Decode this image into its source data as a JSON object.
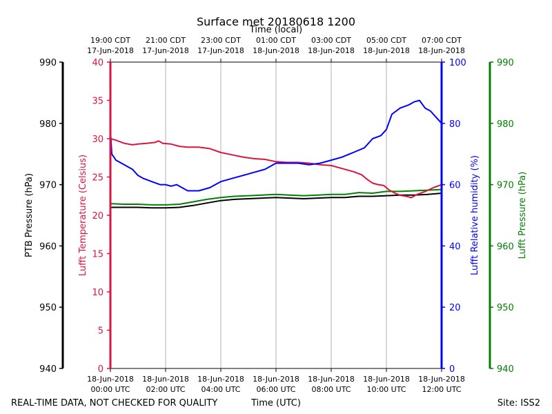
{
  "chart_data": {
    "type": "line",
    "title": "Surface met 20180618 1200",
    "top_axis_label": "Time (local)",
    "bottom_axis_label": "Time (UTC)",
    "footer_left": "REAL-TIME DATA, NOT CHECKED FOR QUALITY",
    "footer_right": "Site: ISS2",
    "x_range_hours": [
      0,
      12
    ],
    "x_ticks_utc": [
      {
        "h": 0,
        "line1": "18-Jun-2018",
        "line2": "00:00 UTC"
      },
      {
        "h": 2,
        "line1": "18-Jun-2018",
        "line2": "02:00 UTC"
      },
      {
        "h": 4,
        "line1": "18-Jun-2018",
        "line2": "04:00 UTC"
      },
      {
        "h": 6,
        "line1": "18-Jun-2018",
        "line2": "06:00 UTC"
      },
      {
        "h": 8,
        "line1": "18-Jun-2018",
        "line2": "08:00 UTC"
      },
      {
        "h": 10,
        "line1": "18-Jun-2018",
        "line2": "10:00 UTC"
      },
      {
        "h": 12,
        "line1": "18-Jun-2018",
        "line2": "12:00 UTC"
      }
    ],
    "x_ticks_local": [
      {
        "h": 0,
        "line1": "19:00 CDT",
        "line2": "17-Jun-2018"
      },
      {
        "h": 2,
        "line1": "21:00 CDT",
        "line2": "17-Jun-2018"
      },
      {
        "h": 4,
        "line1": "23:00 CDT",
        "line2": "17-Jun-2018"
      },
      {
        "h": 6,
        "line1": "01:00 CDT",
        "line2": "18-Jun-2018"
      },
      {
        "h": 8,
        "line1": "03:00 CDT",
        "line2": "18-Jun-2018"
      },
      {
        "h": 10,
        "line1": "05:00 CDT",
        "line2": "18-Jun-2018"
      },
      {
        "h": 12,
        "line1": "07:00 CDT",
        "line2": "18-Jun-2018"
      }
    ],
    "axes": {
      "ptb_pressure": {
        "label": "PTB Pressure (hPa)",
        "range": [
          940,
          990
        ],
        "ticks": [
          940,
          950,
          960,
          970,
          980,
          990
        ],
        "color": "#000000"
      },
      "temperature": {
        "label": "Lufft Temperature (Celsius)",
        "range": [
          0,
          40
        ],
        "ticks": [
          0,
          5,
          10,
          15,
          20,
          25,
          30,
          35,
          40
        ],
        "color": "#dc143c"
      },
      "humidity": {
        "label": "Lufft Relative humidity (%)",
        "range": [
          0,
          100
        ],
        "ticks": [
          0,
          20,
          40,
          60,
          80,
          100
        ],
        "color": "#0000ff"
      },
      "lufft_pressure": {
        "label": "Lufft Pressure (hPa)",
        "range": [
          940,
          990
        ],
        "ticks": [
          940,
          950,
          960,
          970,
          980,
          990
        ],
        "color": "#008000"
      }
    },
    "series": [
      {
        "name": "Lufft Temperature",
        "axis": "temperature",
        "color": "#dc143c",
        "points": [
          [
            0,
            30.0
          ],
          [
            0.2,
            29.8
          ],
          [
            0.5,
            29.4
          ],
          [
            0.8,
            29.2
          ],
          [
            1.0,
            29.3
          ],
          [
            1.3,
            29.4
          ],
          [
            1.6,
            29.5
          ],
          [
            1.75,
            29.7
          ],
          [
            1.9,
            29.4
          ],
          [
            2.2,
            29.3
          ],
          [
            2.5,
            29.0
          ],
          [
            2.8,
            28.9
          ],
          [
            3.2,
            28.9
          ],
          [
            3.6,
            28.7
          ],
          [
            4.0,
            28.2
          ],
          [
            4.4,
            27.9
          ],
          [
            4.8,
            27.6
          ],
          [
            5.2,
            27.4
          ],
          [
            5.6,
            27.3
          ],
          [
            6.0,
            27.0
          ],
          [
            6.4,
            26.9
          ],
          [
            6.8,
            26.9
          ],
          [
            7.2,
            26.8
          ],
          [
            7.6,
            26.6
          ],
          [
            8.0,
            26.5
          ],
          [
            8.4,
            26.1
          ],
          [
            8.8,
            25.7
          ],
          [
            9.1,
            25.3
          ],
          [
            9.3,
            24.7
          ],
          [
            9.5,
            24.2
          ],
          [
            9.7,
            24.0
          ],
          [
            9.9,
            23.9
          ],
          [
            10.1,
            23.3
          ],
          [
            10.3,
            22.9
          ],
          [
            10.5,
            22.6
          ],
          [
            10.7,
            22.5
          ],
          [
            10.9,
            22.3
          ],
          [
            11.1,
            22.7
          ],
          [
            11.4,
            23.1
          ],
          [
            11.7,
            23.6
          ],
          [
            12.0,
            24.0
          ]
        ]
      },
      {
        "name": "Lufft Relative humidity",
        "axis": "humidity",
        "color": "#0000ff",
        "points": [
          [
            0,
            78
          ],
          [
            0.05,
            70
          ],
          [
            0.2,
            68
          ],
          [
            0.4,
            67
          ],
          [
            0.6,
            66
          ],
          [
            0.8,
            65
          ],
          [
            1.0,
            63
          ],
          [
            1.2,
            62
          ],
          [
            1.5,
            61
          ],
          [
            1.8,
            60
          ],
          [
            2.0,
            60
          ],
          [
            2.2,
            59.5
          ],
          [
            2.4,
            60
          ],
          [
            2.6,
            59
          ],
          [
            2.8,
            58
          ],
          [
            3.2,
            58
          ],
          [
            3.6,
            59
          ],
          [
            4.0,
            61
          ],
          [
            4.4,
            62
          ],
          [
            4.8,
            63
          ],
          [
            5.2,
            64
          ],
          [
            5.6,
            65
          ],
          [
            6.0,
            67
          ],
          [
            6.4,
            67
          ],
          [
            6.8,
            67
          ],
          [
            7.2,
            66.5
          ],
          [
            7.6,
            67
          ],
          [
            8.0,
            68
          ],
          [
            8.4,
            69
          ],
          [
            8.8,
            70.5
          ],
          [
            9.2,
            72
          ],
          [
            9.5,
            75
          ],
          [
            9.8,
            76
          ],
          [
            10.0,
            78
          ],
          [
            10.2,
            83
          ],
          [
            10.5,
            85
          ],
          [
            10.8,
            86
          ],
          [
            11.0,
            87
          ],
          [
            11.2,
            87.5
          ],
          [
            11.4,
            85
          ],
          [
            11.6,
            84
          ],
          [
            11.8,
            82
          ],
          [
            12.0,
            80
          ]
        ]
      },
      {
        "name": "PTB Pressure",
        "axis": "ptb_pressure",
        "color": "#000000",
        "points": [
          [
            0,
            966.3
          ],
          [
            0.5,
            966.3
          ],
          [
            1.0,
            966.3
          ],
          [
            1.5,
            966.2
          ],
          [
            2.0,
            966.2
          ],
          [
            2.5,
            966.3
          ],
          [
            3.0,
            966.6
          ],
          [
            3.5,
            967.0
          ],
          [
            4.0,
            967.4
          ],
          [
            4.5,
            967.6
          ],
          [
            5.0,
            967.7
          ],
          [
            5.5,
            967.8
          ],
          [
            6.0,
            967.9
          ],
          [
            6.5,
            967.8
          ],
          [
            7.0,
            967.7
          ],
          [
            7.5,
            967.8
          ],
          [
            8.0,
            967.9
          ],
          [
            8.5,
            967.9
          ],
          [
            9.0,
            968.1
          ],
          [
            9.5,
            968.1
          ],
          [
            10.0,
            968.2
          ],
          [
            10.5,
            968.3
          ],
          [
            11.0,
            968.3
          ],
          [
            11.5,
            968.4
          ],
          [
            12.0,
            968.6
          ]
        ]
      },
      {
        "name": "Lufft Pressure",
        "axis": "lufft_pressure",
        "color": "#008000",
        "points": [
          [
            0,
            966.9
          ],
          [
            0.5,
            966.8
          ],
          [
            1.0,
            966.8
          ],
          [
            1.5,
            966.7
          ],
          [
            2.0,
            966.7
          ],
          [
            2.5,
            966.8
          ],
          [
            3.0,
            967.2
          ],
          [
            3.5,
            967.6
          ],
          [
            4.0,
            967.9
          ],
          [
            4.5,
            968.1
          ],
          [
            5.0,
            968.2
          ],
          [
            5.5,
            968.3
          ],
          [
            6.0,
            968.4
          ],
          [
            6.5,
            968.3
          ],
          [
            7.0,
            968.2
          ],
          [
            7.5,
            968.3
          ],
          [
            8.0,
            968.4
          ],
          [
            8.5,
            968.4
          ],
          [
            9.0,
            968.7
          ],
          [
            9.5,
            968.6
          ],
          [
            10.0,
            968.9
          ],
          [
            10.5,
            968.9
          ],
          [
            11.0,
            969.0
          ],
          [
            11.5,
            969.1
          ],
          [
            12.0,
            969.2
          ]
        ]
      }
    ]
  }
}
